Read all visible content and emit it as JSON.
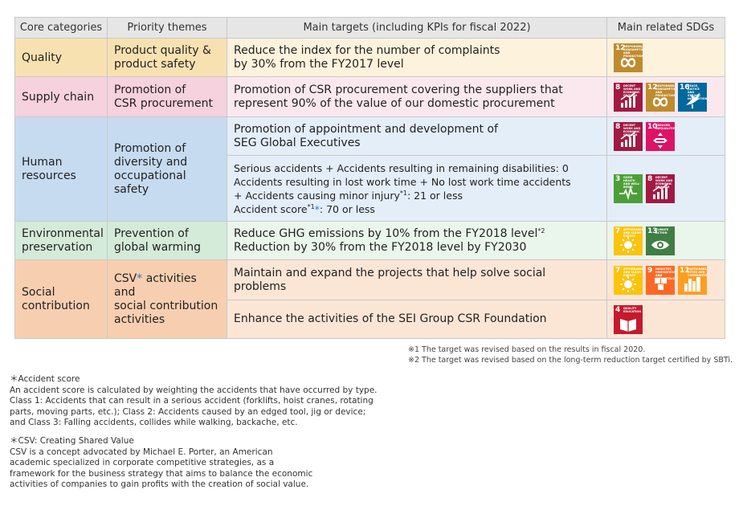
{
  "colors": {
    "quality": "#f8e1b1",
    "supply": "#f6d1de",
    "human": "#c6dbf0",
    "environment": "#d4ebd9",
    "social": "#f7cfb0",
    "header": "#e6e6e6"
  },
  "header": {
    "col1": "Core categories",
    "col2": "Priority themes",
    "col3": "Main targets (including KPIs for fiscal 2022)",
    "col4": "Main related SDGs"
  },
  "rows": {
    "quality": {
      "category": "Quality",
      "theme_l1": "Product quality &",
      "theme_l2": "product safety",
      "target_l1": "Reduce the index for the number of complaints",
      "target_l2": "by 30% from the FY2017 level"
    },
    "supply": {
      "category": "Supply chain",
      "theme_l1": "Promotion of",
      "theme_l2": "CSR procurement",
      "target_l1": "Promotion of CSR procurement covering the suppliers that",
      "target_l2": "represent 90% of the value of our domestic procurement"
    },
    "human": {
      "category_l1": "Human",
      "category_l2": "resources",
      "theme_l1": "Promotion of",
      "theme_l2": "diversity and",
      "theme_l3": "occupational safety",
      "target1_l1": "Promotion of appointment and development of",
      "target1_l2": "SEG Global Executives",
      "target2_l1": "Serious accidents + Accidents resulting in remaining disabilities: 0",
      "target2_l2": "Accidents resulting in lost work time + No lost work time accidents",
      "target2_l3a": "+ Accidents causing minor injury",
      "target2_l3sup": "*1",
      "target2_l3b": ": 21 or less",
      "target2_l4a": "Accident score",
      "target2_l4sup": "*1",
      "target2_l4star": "*",
      "target2_l4b": ": 70 or less"
    },
    "environment": {
      "category_l1": "Environmental",
      "category_l2": "preservation",
      "theme_l1": "Prevention of",
      "theme_l2": "global warming",
      "target_l1a": "Reduce GHG emissions by 10% from the FY2018 level",
      "target_l1sup": "*2",
      "target_l2": "Reduction by 30% from the FY2018 level by FY2030"
    },
    "social": {
      "category_l1": "Social",
      "category_l2": "contribution",
      "theme_l1a": "CSV",
      "theme_l1star": "*",
      "theme_l1b": " activities and",
      "theme_l2": "social contribution",
      "theme_l3": "activities",
      "target1": "Maintain and expand the projects that help solve social problems",
      "target2": "Enhance the activities of the SEI Group CSR Foundation"
    }
  },
  "sdgs": {
    "g3": {
      "num": "3",
      "label": "GOOD HEALTH AND WELL-BEING",
      "color": "#4c9f38",
      "icon": "heartbeat-icon"
    },
    "g4": {
      "num": "4",
      "label": "QUALITY EDUCATION",
      "color": "#c5192d",
      "icon": "book-icon"
    },
    "g7": {
      "num": "7",
      "label": "AFFORDABLE AND CLEAN ENERGY",
      "color": "#fcc30b",
      "icon": "sun-icon"
    },
    "g8": {
      "num": "8",
      "label": "DECENT WORK AND ECONOMIC GROWTH",
      "color": "#a21942",
      "icon": "growth-chart-icon"
    },
    "g9": {
      "num": "9",
      "label": "INDUSTRY, INNOVATION AND INFRASTRUCTURE",
      "color": "#fd6925",
      "icon": "cubes-icon"
    },
    "g10": {
      "num": "10",
      "label": "REDUCED INEQUALITIES",
      "color": "#dd1367",
      "icon": "equality-icon"
    },
    "g11": {
      "num": "11",
      "label": "SUSTAINABLE CITIES AND COMMUNITIES",
      "color": "#fd9d24",
      "icon": "city-icon"
    },
    "g12": {
      "num": "12",
      "label": "RESPONSIBLE CONSUMPTION AND PRODUCTION",
      "color": "#bf8b2e",
      "icon": "infinity-icon"
    },
    "g13": {
      "num": "13",
      "label": "CLIMATE ACTION",
      "color": "#3f7e44",
      "icon": "eye-globe-icon"
    },
    "g16": {
      "num": "16",
      "label": "PEACE, JUSTICE AND STRONG INSTITUTIONS",
      "color": "#00689d",
      "icon": "dove-icon"
    }
  },
  "footnotes_right": {
    "n1": "※1 The target was revised based on the results in fiscal 2020.",
    "n2": "※2 The target was revised based on the long-term reduction target certified by SBTi."
  },
  "note_accident": {
    "title": "＊Accident score",
    "l1": "An accident score is calculated by weighting the accidents that have occurred by type.",
    "l2": "Class 1: Accidents that can result in a serious accident (forklifts, hoist cranes, rotating",
    "l3": "parts, moving parts, etc.); Class 2: Accidents caused by an edged tool, jig or device;",
    "l4": "and Class 3: Falling accidents, collides while walking, backache, etc."
  },
  "note_csv": {
    "title": "＊CSV: Creating Shared Value",
    "l1": "CSV is a concept advocated by Michael E. Porter, an American",
    "l2": "academic specialized in corporate competitive strategies, as a",
    "l3": "framework for the business strategy that aims to balance the economic",
    "l4": "activities of companies to gain profits with the creation of social value."
  }
}
